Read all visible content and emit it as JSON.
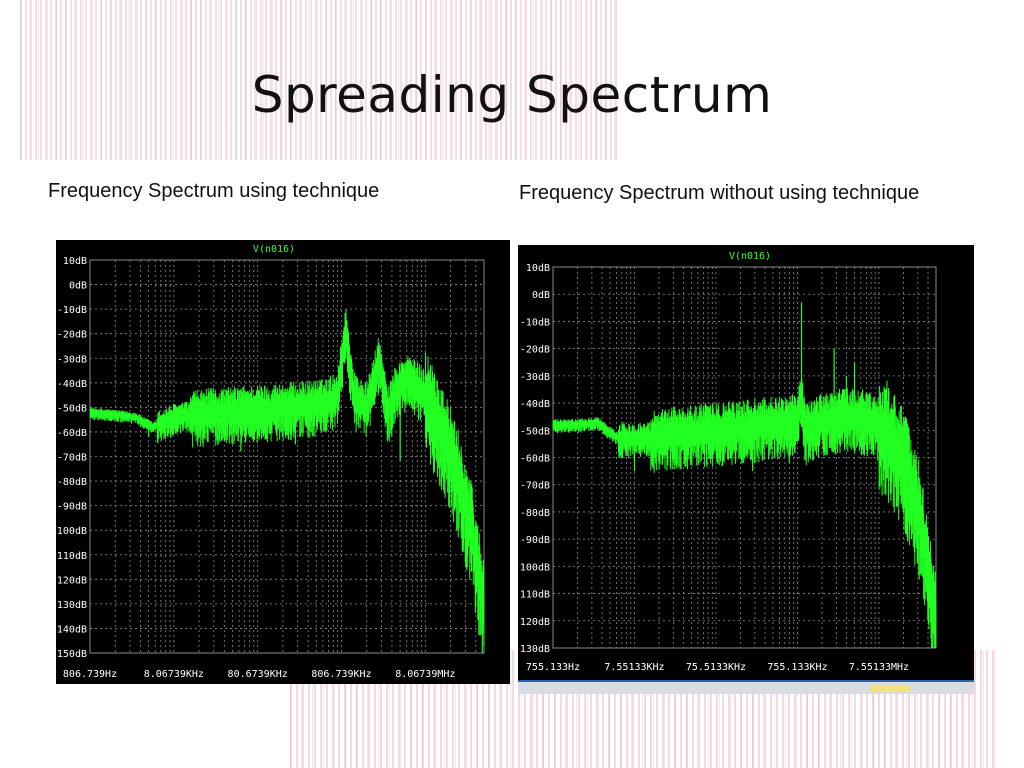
{
  "slide": {
    "title": "Spreading Spectrum",
    "left_caption": "Frequency Spectrum using technique",
    "right_caption": "Frequency Spectrum without using technique"
  },
  "colors": {
    "trace": "#22ff22",
    "plot_bg": "#000000",
    "grid": "#8a8a8a",
    "label": "#ffffff",
    "series_label": "#33ff33"
  },
  "chart_data": [
    {
      "type": "line",
      "series": [
        {
          "name": "V(n016)",
          "color": "#22ff22"
        }
      ],
      "y_ticks": [
        "10dB",
        "0dB",
        "-10dB",
        "-20dB",
        "-30dB",
        "-40dB",
        "-50dB",
        "-60dB",
        "-70dB",
        "-80dB",
        "-90dB",
        "-100dB",
        "-110dB",
        "-120dB",
        "-130dB",
        "-140dB",
        "-150dB"
      ],
      "x_ticks": [
        "806.739Hz",
        "8.06739KHz",
        "80.6739KHz",
        "806.739KHz",
        "8.06739MHz"
      ],
      "ylim": [
        -150,
        10
      ],
      "xscale": "log",
      "xlim_decades": [
        0,
        4.7
      ],
      "grid": true,
      "trend": [
        [
          0.0,
          -52
        ],
        [
          0.3,
          -53
        ],
        [
          0.55,
          -54
        ],
        [
          0.75,
          -58
        ],
        [
          1.0,
          -54
        ],
        [
          1.4,
          -52
        ],
        [
          1.8,
          -51
        ],
        [
          2.2,
          -50
        ],
        [
          2.5,
          -49
        ],
        [
          2.8,
          -48
        ],
        [
          2.95,
          -45
        ],
        [
          3.05,
          -18
        ],
        [
          3.15,
          -45
        ],
        [
          3.3,
          -50
        ],
        [
          3.45,
          -30
        ],
        [
          3.55,
          -52
        ],
        [
          3.65,
          -42
        ],
        [
          3.8,
          -38
        ],
        [
          4.0,
          -44
        ],
        [
          4.2,
          -58
        ],
        [
          4.4,
          -78
        ],
        [
          4.55,
          -98
        ],
        [
          4.7,
          -130
        ]
      ],
      "spikes": [
        [
          0.7,
          -62
        ],
        [
          1.05,
          -60
        ],
        [
          1.4,
          -64
        ],
        [
          1.8,
          -68
        ],
        [
          2.1,
          -63
        ],
        [
          2.45,
          -65
        ],
        [
          2.8,
          -60
        ],
        [
          3.6,
          -62
        ],
        [
          3.7,
          -72
        ],
        [
          4.1,
          -70
        ],
        [
          4.35,
          -92
        ],
        [
          4.5,
          -115
        ],
        [
          4.6,
          -125
        ],
        [
          4.68,
          -150
        ]
      ]
    },
    {
      "type": "line",
      "series": [
        {
          "name": "V(n016)",
          "color": "#22ff22"
        }
      ],
      "y_ticks": [
        "10dB",
        "0dB",
        "-10dB",
        "-20dB",
        "-30dB",
        "-40dB",
        "-50dB",
        "-60dB",
        "-70dB",
        "-80dB",
        "-90dB",
        "-100dB",
        "-110dB",
        "-120dB",
        "-130dB"
      ],
      "x_ticks": [
        "755.133Hz",
        "7.55133KHz",
        "75.5133KHz",
        "755.133KHz",
        "7.55133MHz"
      ],
      "ylim": [
        -130,
        10
      ],
      "xscale": "log",
      "xlim_decades": [
        0,
        4.7
      ],
      "grid": true,
      "trend": [
        [
          0.0,
          -48
        ],
        [
          0.3,
          -48
        ],
        [
          0.55,
          -47
        ],
        [
          0.75,
          -52
        ],
        [
          1.0,
          -53
        ],
        [
          1.4,
          -51
        ],
        [
          1.8,
          -50
        ],
        [
          2.2,
          -49
        ],
        [
          2.5,
          -48
        ],
        [
          2.8,
          -47
        ],
        [
          3.0,
          -45
        ],
        [
          3.05,
          -38
        ],
        [
          3.1,
          -50
        ],
        [
          3.3,
          -46
        ],
        [
          3.6,
          -44
        ],
        [
          3.9,
          -46
        ],
        [
          4.1,
          -50
        ],
        [
          4.3,
          -60
        ],
        [
          4.5,
          -80
        ],
        [
          4.65,
          -110
        ],
        [
          4.7,
          -120
        ]
      ],
      "spikes": [
        [
          0.9,
          -58
        ],
        [
          1.0,
          -65
        ],
        [
          1.35,
          -60
        ],
        [
          1.7,
          -62
        ],
        [
          2.1,
          -60
        ],
        [
          2.45,
          -65
        ],
        [
          2.9,
          -62
        ],
        [
          3.05,
          -3
        ],
        [
          3.2,
          -58
        ],
        [
          3.45,
          -20
        ],
        [
          3.6,
          -30
        ],
        [
          3.7,
          -25
        ],
        [
          3.8,
          -35
        ],
        [
          3.95,
          -40
        ],
        [
          4.2,
          -65
        ],
        [
          4.4,
          -90
        ],
        [
          4.6,
          -120
        ]
      ]
    }
  ]
}
